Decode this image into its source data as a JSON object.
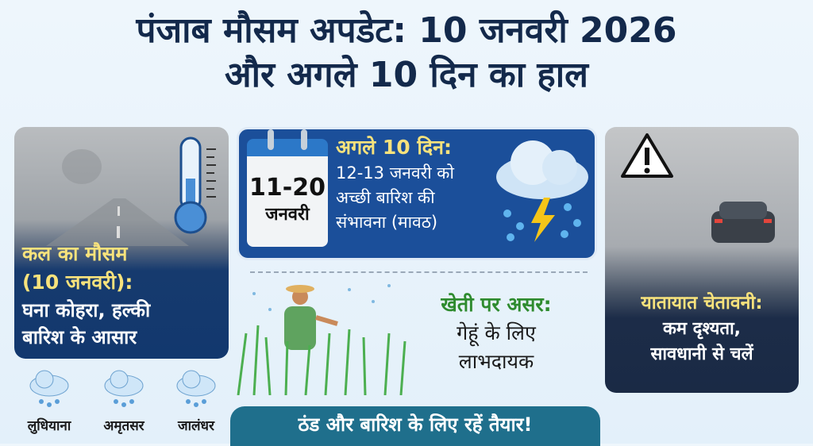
{
  "title": {
    "line1": "पंजाब मौसम अपडेट: 10 जनवरी 2026",
    "line2": "और अगले 10 दिन का हाल"
  },
  "tomorrow": {
    "heading1": "कल का मौसम",
    "heading2": "(10 जनवरी):",
    "text1": "घना कोहरा, हल्की",
    "text2": "बारिश के आसार",
    "icon": "thermometer-icon"
  },
  "cities": [
    {
      "name": "लुधियाना",
      "icon": "rain-cloud-icon"
    },
    {
      "name": "अमृतसर",
      "icon": "rain-cloud-icon"
    },
    {
      "name": "जालंधर",
      "icon": "rain-cloud-icon"
    }
  ],
  "forecast": {
    "calendar_range": "11-20",
    "calendar_month": "जनवरी",
    "heading": "अगले 10 दिन:",
    "line1": "12-13 जनवरी को",
    "line2": "अच्छी बारिश की",
    "line3": "संभावना (मावठ)",
    "icon": "thunderstorm-cloud-icon"
  },
  "farming": {
    "heading": "खेती पर असर:",
    "line1": "गेहूं के लिए",
    "line2": "लाभदायक"
  },
  "traffic": {
    "heading": "यातायात चेतावनी:",
    "line1": "कम दृश्यता,",
    "line2": "सावधानी से चलें",
    "icon": "warning-icon"
  },
  "banner": "ठंड और बारिश के लिए रहें तैयार!",
  "colors": {
    "navy": "#13294b",
    "accent_yellow": "#f7e27c",
    "card_blue": "#1b4f9a",
    "green": "#2e8b2e",
    "banner_teal": "#1f6f8c"
  }
}
